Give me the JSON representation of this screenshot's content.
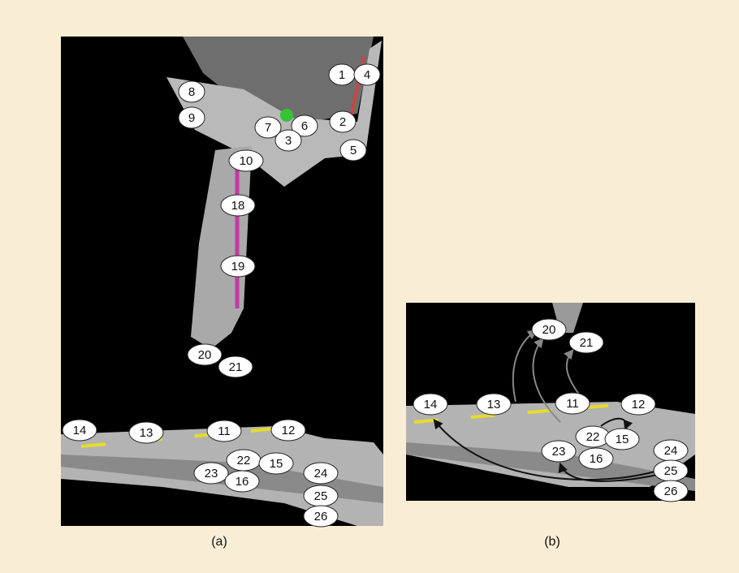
{
  "panels": [
    {
      "caption": "(a)",
      "labels": [
        "1",
        "4",
        "8",
        "9",
        "7",
        "6",
        "3",
        "2",
        "5",
        "10",
        "18",
        "19",
        "20",
        "21",
        "14",
        "13",
        "11",
        "12",
        "22",
        "15",
        "23",
        "16",
        "24",
        "25",
        "26"
      ]
    },
    {
      "caption": "(b)",
      "labels": [
        "20",
        "21",
        "14",
        "13",
        "11",
        "12",
        "22",
        "15",
        "23",
        "16",
        "24",
        "25",
        "26"
      ]
    }
  ]
}
